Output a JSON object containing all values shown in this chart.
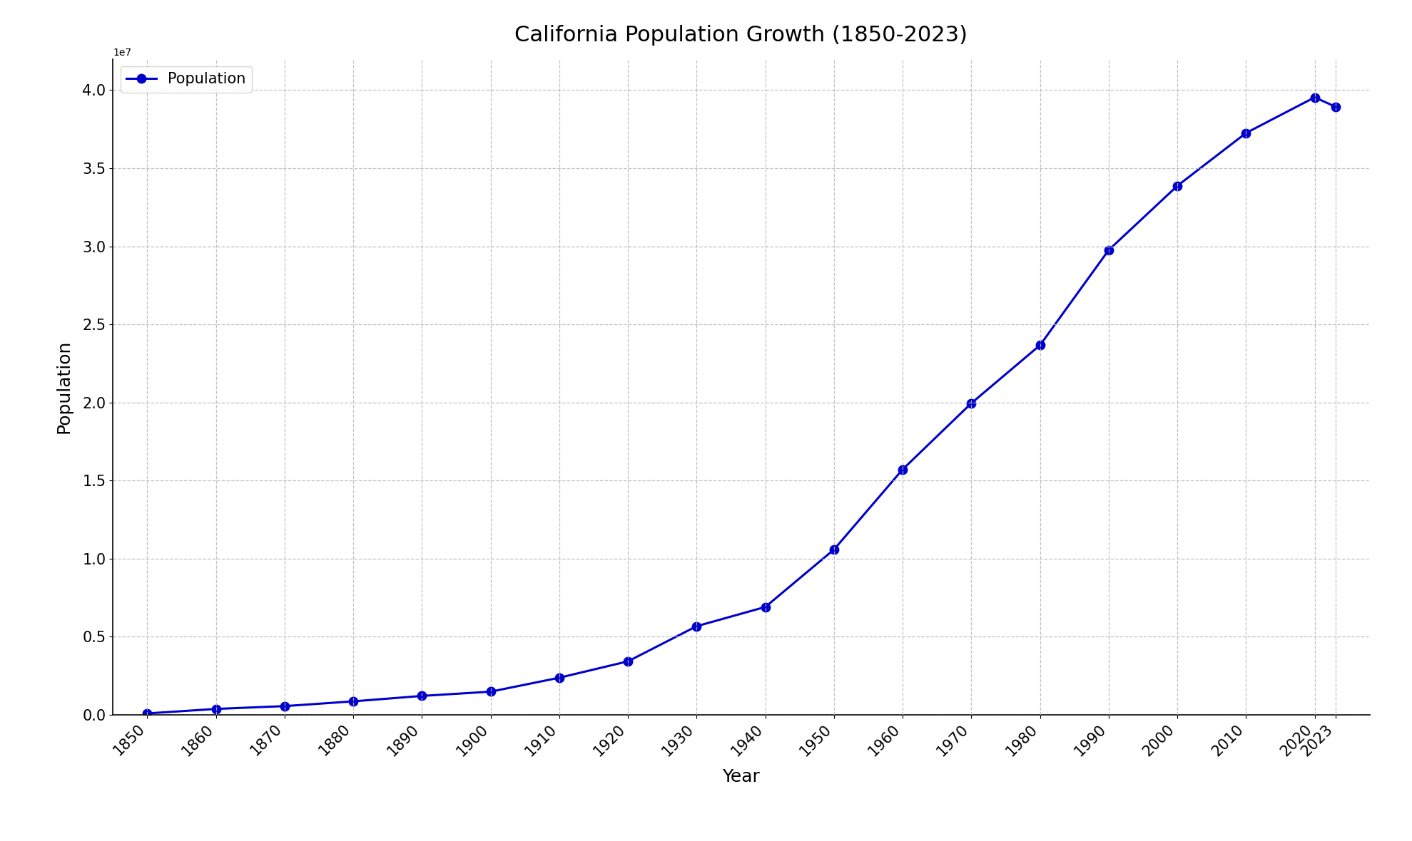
{
  "title": "California Population Growth (1850-2023)",
  "xlabel": "Year",
  "ylabel": "Population",
  "line_color": "#0000cc",
  "marker": "o",
  "marker_size": 9,
  "line_width": 2.2,
  "background_color": "#ffffff",
  "grid_color": "#bbbbbb",
  "years": [
    1850,
    1860,
    1870,
    1880,
    1890,
    1900,
    1910,
    1920,
    1930,
    1940,
    1950,
    1960,
    1970,
    1980,
    1990,
    2000,
    2010,
    2020,
    2023
  ],
  "population": [
    92597,
    379994,
    560247,
    864694,
    1213398,
    1485053,
    2377549,
    3426861,
    5677251,
    6907387,
    10586223,
    15717204,
    19953134,
    23667902,
    29760021,
    33871648,
    37253956,
    39538223,
    38940231
  ],
  "ylim": [
    0,
    42000000.0
  ],
  "xlim": [
    1845,
    2028
  ],
  "legend_label": "Population",
  "title_fontsize": 22,
  "axis_label_fontsize": 18,
  "tick_fontsize": 15
}
